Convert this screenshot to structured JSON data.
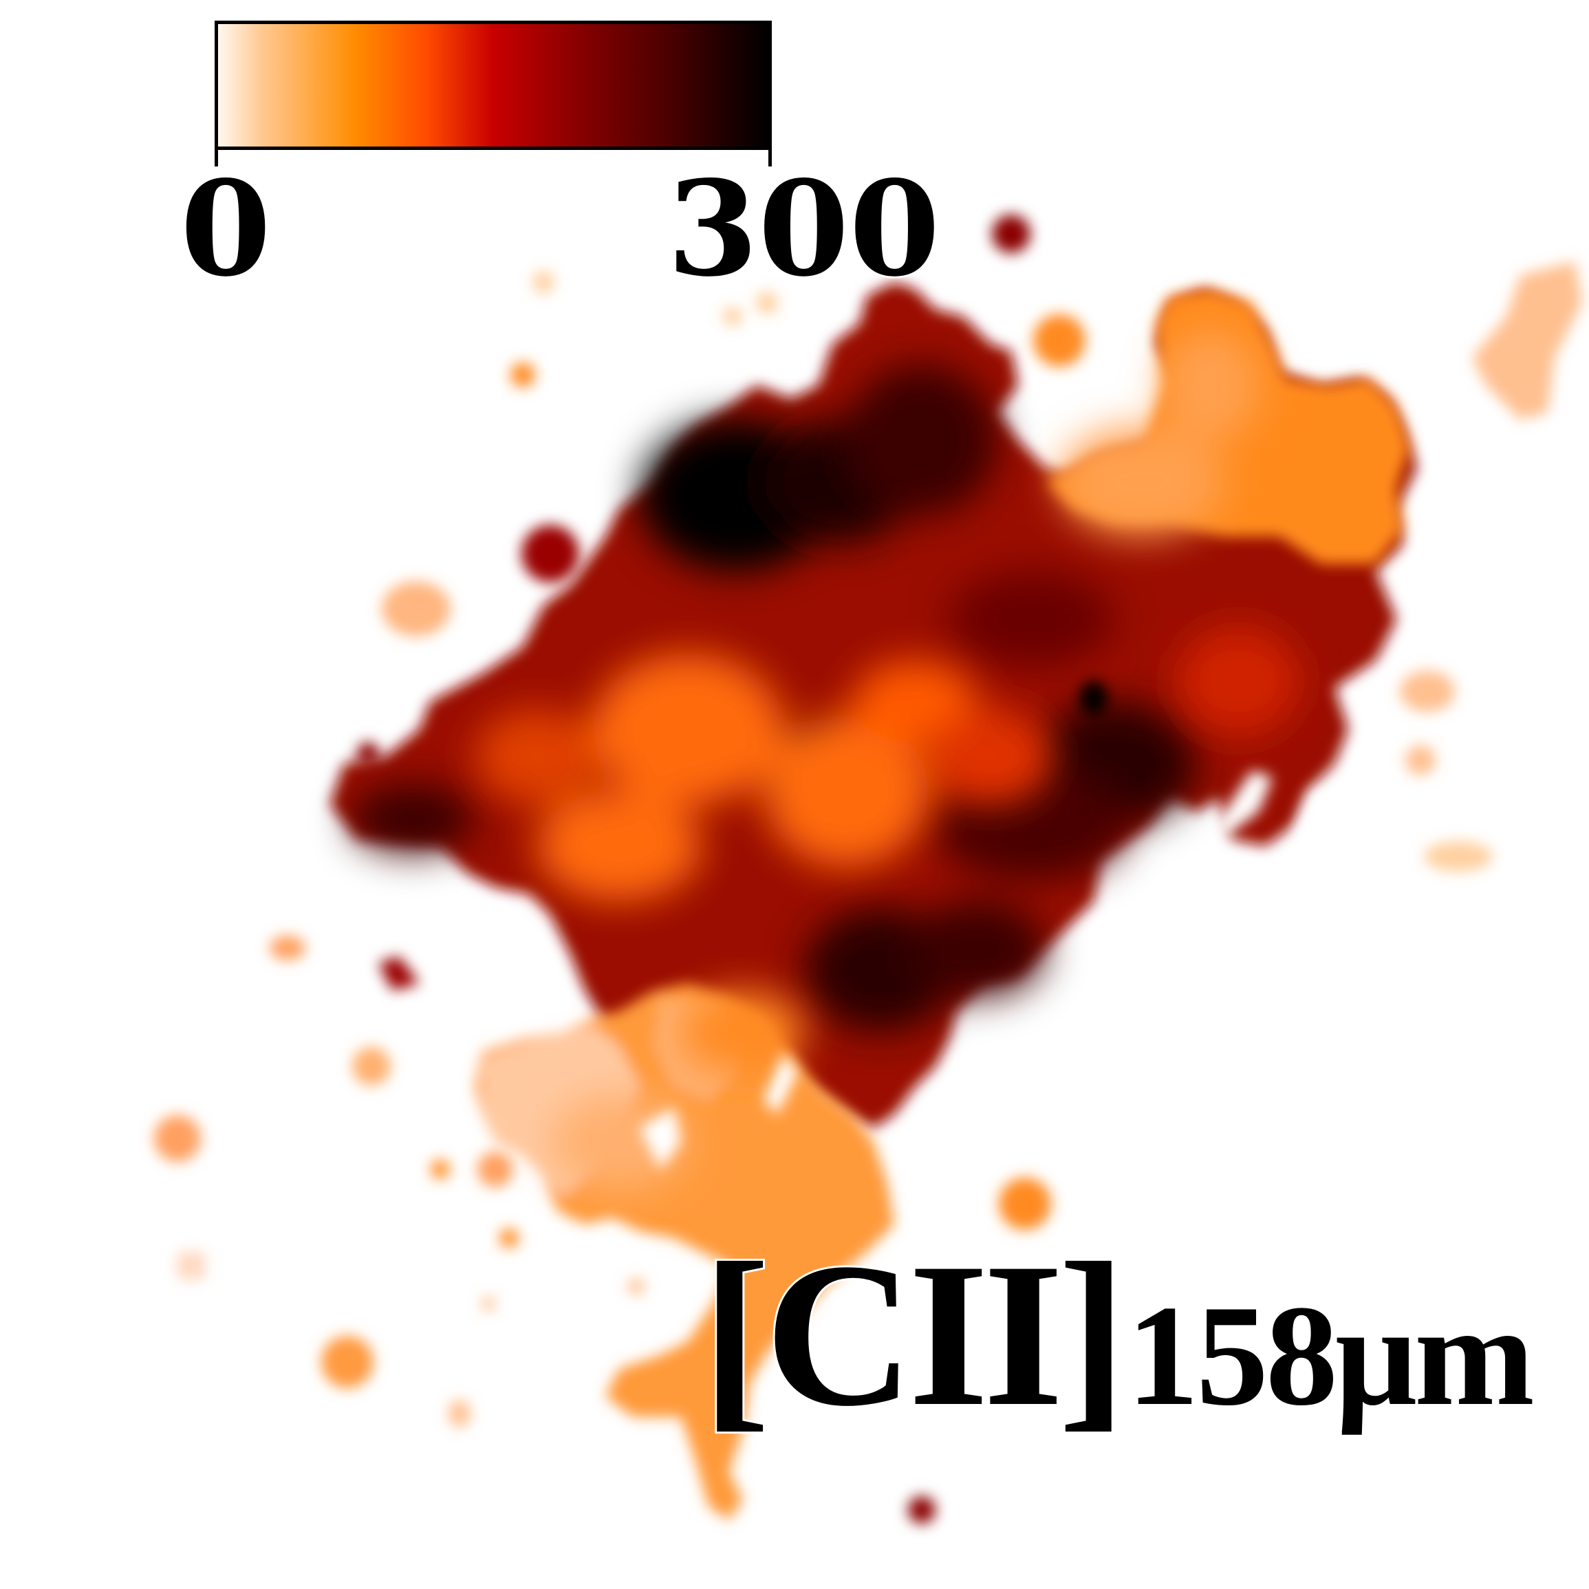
{
  "colorbar": {
    "min_label": "0",
    "max_label": "300",
    "colormap": [
      "#fff8f0",
      "#ffc890",
      "#ff8c00",
      "#ff4a00",
      "#c80000",
      "#8a0000",
      "#4a0000",
      "#000000"
    ]
  },
  "label": {
    "species": "[CII]",
    "wavelength": "158μm"
  }
}
